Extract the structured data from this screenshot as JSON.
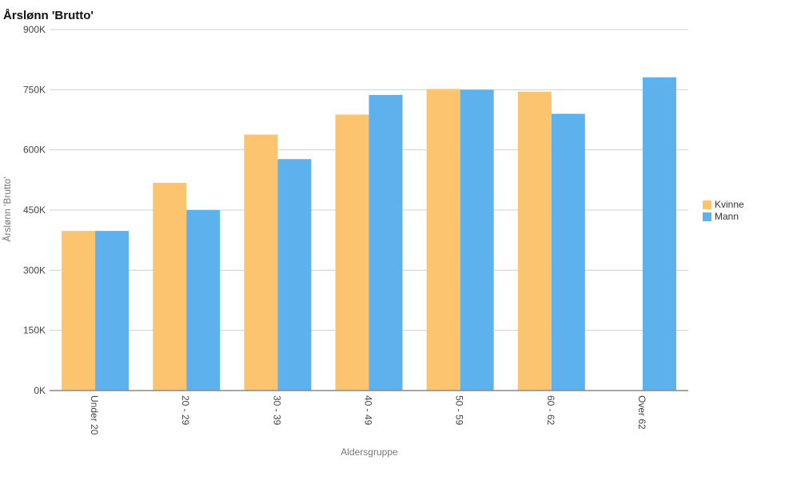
{
  "chart_data": {
    "type": "bar",
    "title": "Årslønn 'Brutto'",
    "xlabel": "Aldersgruppe",
    "ylabel": "Årslønn 'Brutto'",
    "categories": [
      "Under 20",
      "20 - 29",
      "30 - 39",
      "40 - 49",
      "50 - 59",
      "60 - 62",
      "Over 62"
    ],
    "series": [
      {
        "name": "Kvinne",
        "color": "#FDC470",
        "values": [
          398000,
          518000,
          638000,
          688000,
          752000,
          745000,
          null
        ]
      },
      {
        "name": "Mann",
        "color": "#5DB1EC",
        "values": [
          398000,
          450000,
          577000,
          737000,
          750000,
          690000,
          781000
        ]
      }
    ],
    "ylim": [
      0,
      900000
    ],
    "yticks": [
      {
        "value": 0,
        "label": "0K"
      },
      {
        "value": 150000,
        "label": "150K"
      },
      {
        "value": 300000,
        "label": "300K"
      },
      {
        "value": 450000,
        "label": "450K"
      },
      {
        "value": 600000,
        "label": "600K"
      },
      {
        "value": 750000,
        "label": "750K"
      },
      {
        "value": 900000,
        "label": "900K"
      }
    ],
    "grid": true,
    "legend_position": "right"
  }
}
